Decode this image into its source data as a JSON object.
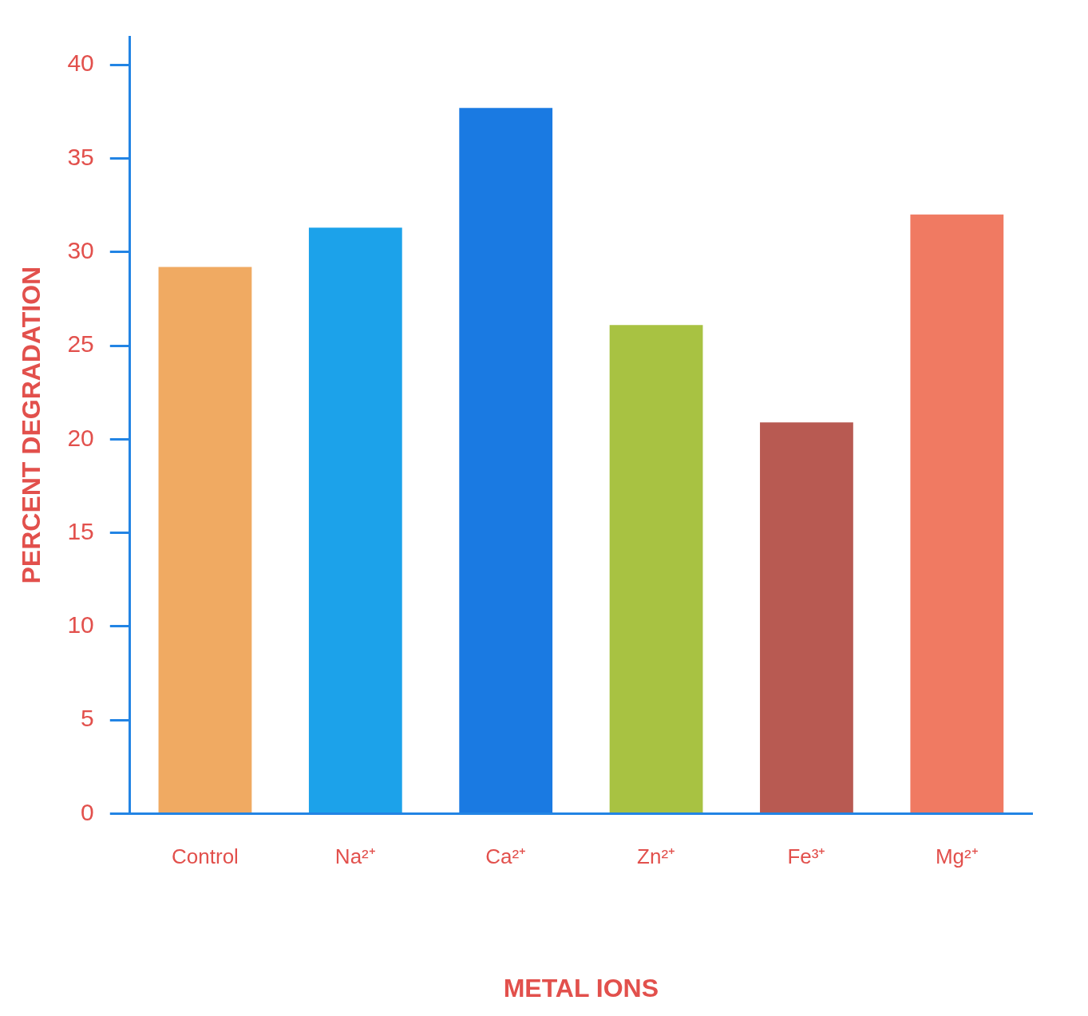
{
  "chart_data": {
    "type": "bar",
    "xlabel": "METAL IONS",
    "ylabel": "PERCENT DEGRADATION",
    "categories": [
      "Control",
      "Na²⁺",
      "Ca²⁺",
      "Zn²⁺",
      "Fe³⁺",
      "Mg²⁺"
    ],
    "values": [
      29.2,
      31.3,
      37.7,
      26.1,
      20.9,
      32.0
    ],
    "colors": [
      "#f0aa62",
      "#1ca2ea",
      "#1a7ae2",
      "#a8c242",
      "#b85a52",
      "#f07a62"
    ],
    "ylim": [
      0,
      41.5
    ],
    "yticks": [
      0,
      5,
      10,
      15,
      20,
      25,
      30,
      35,
      40
    ],
    "grid": false
  }
}
